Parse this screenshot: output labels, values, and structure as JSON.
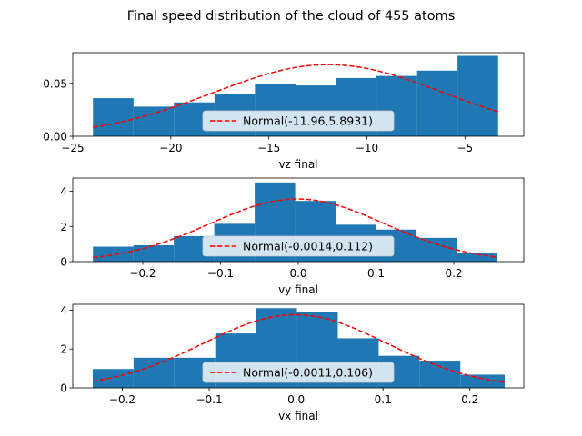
{
  "figure": {
    "title": "Final speed distribution of the cloud of 455 atoms"
  },
  "chart_data": [
    {
      "type": "bar",
      "xlabel": "vz final",
      "ylabel": "",
      "xlim": [
        -25,
        -2.0
      ],
      "ylim": [
        0,
        0.079
      ],
      "xticks": [
        -25,
        -20,
        -15,
        -10,
        -5
      ],
      "xtick_labels": [
        "−25",
        "−20",
        "−15",
        "−10",
        "−5"
      ],
      "yticks": [
        0.0,
        0.05
      ],
      "ytick_labels": [
        "0.00",
        "0.05"
      ],
      "bin_edges": [
        -23.97,
        -21.9,
        -19.84,
        -17.77,
        -15.71,
        -13.64,
        -11.58,
        -9.51,
        -7.44,
        -5.38,
        -3.31
      ],
      "values": [
        0.036,
        0.028,
        0.032,
        0.04,
        0.049,
        0.048,
        0.055,
        0.057,
        0.062,
        0.076
      ],
      "bar_color": "#1f77b4",
      "fit": {
        "name": "Normal(-11.96,5.8931)",
        "mu": -11.96,
        "sigma": 5.8931,
        "color": "#ff0000",
        "style": "dashed"
      },
      "legend": {
        "label": "Normal(-11.96,5.8931)",
        "placement": "lower center"
      }
    },
    {
      "type": "bar",
      "xlabel": "vy final",
      "ylabel": "",
      "xlim": [
        -0.29,
        0.29
      ],
      "ylim": [
        0,
        4.75
      ],
      "xticks": [
        -0.2,
        -0.1,
        0.0,
        0.1,
        0.2
      ],
      "xtick_labels": [
        "−0.2",
        "−0.1",
        "0.0",
        "0.1",
        "0.2"
      ],
      "yticks": [
        0,
        2,
        4
      ],
      "ytick_labels": [
        "0",
        "2",
        "4"
      ],
      "bin_edges": [
        -0.264,
        -0.212,
        -0.16,
        -0.108,
        -0.056,
        -0.004,
        0.048,
        0.1,
        0.152,
        0.204,
        0.256
      ],
      "values": [
        0.85,
        0.93,
        1.45,
        2.15,
        4.5,
        3.45,
        2.1,
        1.82,
        1.35,
        0.5
      ],
      "bar_color": "#1f77b4",
      "fit": {
        "name": "Normal(-0.0014,0.112)",
        "mu": -0.0014,
        "sigma": 0.112,
        "color": "#ff0000",
        "style": "dashed"
      },
      "legend": {
        "label": "Normal(-0.0014,0.112)",
        "placement": "lower center"
      }
    },
    {
      "type": "bar",
      "xlabel": "vx final",
      "ylabel": "",
      "xlim": [
        -0.257,
        0.262
      ],
      "ylim": [
        0,
        4.3
      ],
      "xticks": [
        -0.2,
        -0.1,
        0.0,
        0.1,
        0.2
      ],
      "xtick_labels": [
        "−0.2",
        "−0.1",
        "0.0",
        "0.1",
        "0.2"
      ],
      "yticks": [
        0,
        2,
        4
      ],
      "ytick_labels": [
        "0",
        "2",
        "4"
      ],
      "bin_edges": [
        -0.234,
        -0.187,
        -0.14,
        -0.093,
        -0.046,
        0.001,
        0.048,
        0.095,
        0.142,
        0.189,
        0.24
      ],
      "values": [
        0.97,
        1.55,
        1.55,
        2.8,
        4.1,
        3.9,
        2.55,
        1.65,
        1.4,
        0.68
      ],
      "bar_color": "#1f77b4",
      "fit": {
        "name": "Normal(-0.0011,0.106)",
        "mu": -0.0011,
        "sigma": 0.106,
        "color": "#ff0000",
        "style": "dashed"
      },
      "legend": {
        "label": "Normal(-0.0011,0.106)",
        "placement": "lower center"
      }
    }
  ]
}
